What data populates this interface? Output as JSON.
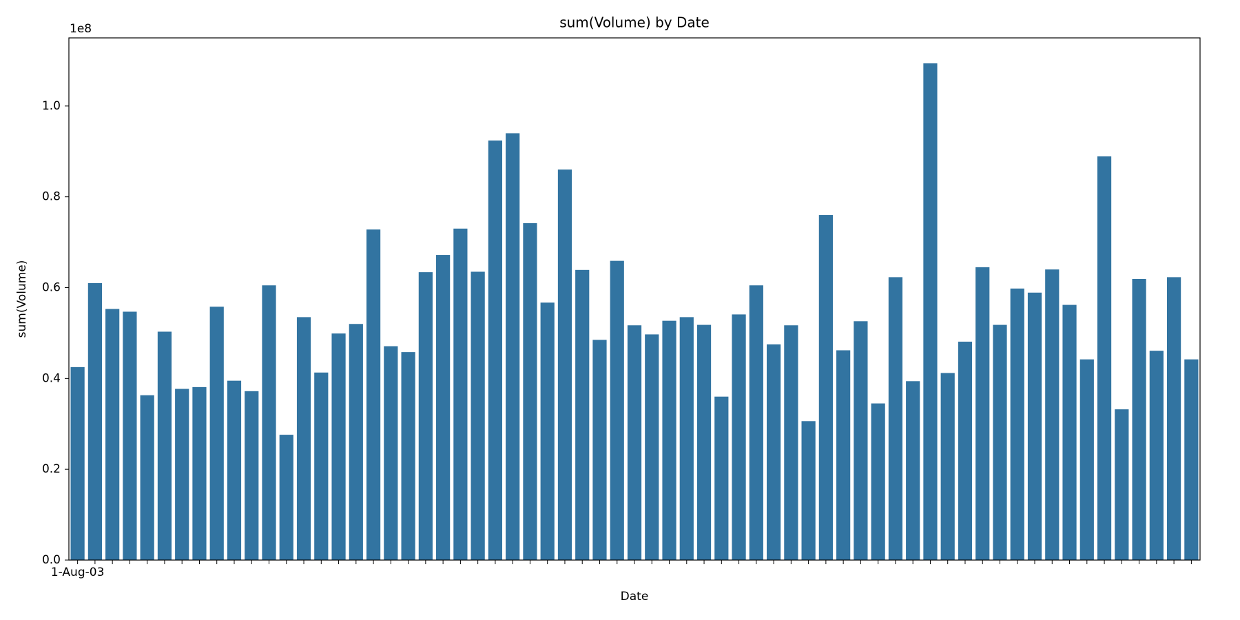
{
  "chart_data": {
    "type": "bar",
    "title": "sum(Volume) by Date",
    "x_label": "Date",
    "y_label": "sum(Volume)",
    "y_offset_label": "1e8",
    "categories": [
      "1-Aug-03",
      null,
      null,
      null,
      null,
      null,
      null,
      null,
      null,
      null,
      null,
      null,
      null,
      null,
      null,
      null,
      null,
      null,
      null,
      null,
      null,
      null,
      null,
      null,
      null,
      null,
      null,
      null,
      null,
      null,
      null,
      null,
      null,
      null,
      null,
      null,
      null,
      null,
      null,
      null,
      null,
      null,
      null,
      null,
      null,
      null,
      null,
      null,
      null,
      null,
      null,
      null,
      null,
      null,
      null,
      null,
      null,
      null,
      null,
      null,
      null,
      null,
      null,
      null,
      null
    ],
    "values": [
      0.425,
      0.61,
      0.553,
      0.547,
      0.363,
      0.503,
      0.377,
      0.381,
      0.558,
      0.395,
      0.372,
      0.605,
      0.276,
      0.535,
      0.413,
      0.499,
      0.52,
      0.728,
      0.471,
      0.458,
      0.634,
      0.672,
      0.73,
      0.635,
      0.924,
      0.94,
      0.742,
      0.567,
      0.86,
      0.639,
      0.485,
      0.659,
      0.517,
      0.497,
      0.527,
      0.535,
      0.518,
      0.36,
      0.541,
      0.605,
      0.475,
      0.517,
      0.306,
      0.76,
      0.462,
      0.526,
      0.345,
      0.623,
      0.394,
      1.094,
      0.412,
      0.481,
      0.645,
      0.518,
      0.598,
      0.589,
      0.64,
      0.562,
      0.442,
      0.889,
      0.332,
      0.619,
      0.461,
      0.623,
      0.442
    ],
    "color": "#3274a1",
    "ylim": [
      0,
      1.15
    ],
    "yticks": [
      {
        "value": 0,
        "label": "0.0"
      },
      0.2,
      0.4,
      0.6,
      0.8,
      {
        "value": 1,
        "label": "1.0"
      }
    ],
    "grid": false
  }
}
